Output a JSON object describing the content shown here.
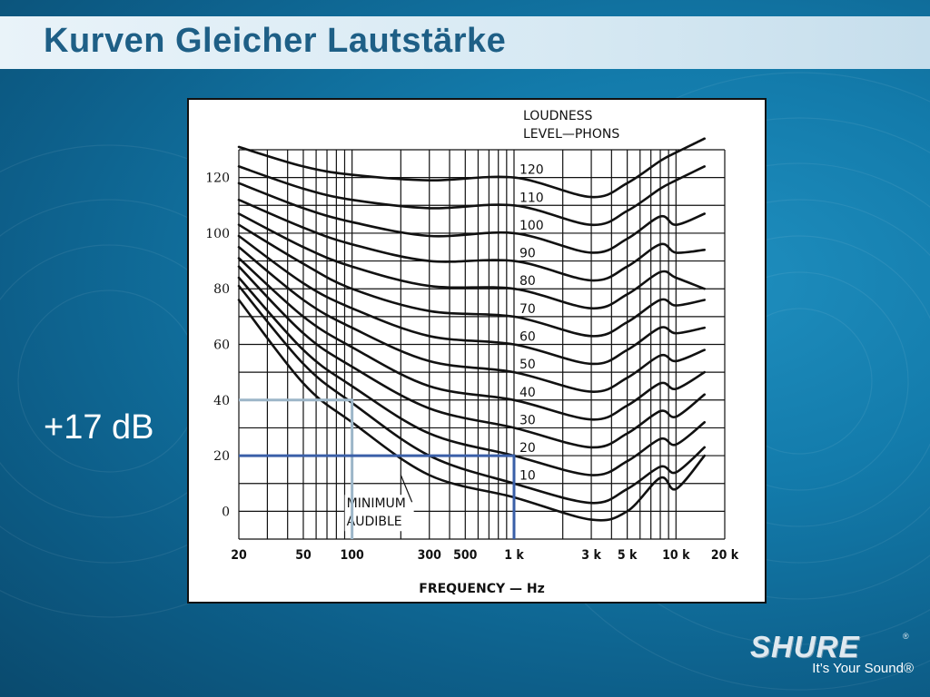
{
  "slide": {
    "title": "Kurven Gleicher Lautstärke",
    "annotation": "+17 dB",
    "logo_text": "SHURE",
    "logo_mark": "®",
    "tagline": "It’s Your Sound®"
  },
  "chart_data": {
    "type": "line",
    "title": "",
    "legend_title_line1": "LOUDNESS",
    "legend_title_line2": "LEVEL—PHONS",
    "xlabel": "FREQUENCY — Hz",
    "ylabel": "",
    "x_scale": "log",
    "xlim": [
      20,
      20000
    ],
    "ylim": [
      -10,
      130
    ],
    "grid": true,
    "x_ticks": [
      {
        "value": 20,
        "label": "20"
      },
      {
        "value": 50,
        "label": "50"
      },
      {
        "value": 100,
        "label": "100"
      },
      {
        "value": 300,
        "label": "300"
      },
      {
        "value": 500,
        "label": "500"
      },
      {
        "value": 1000,
        "label": "1 k"
      },
      {
        "value": 3000,
        "label": "3 k"
      },
      {
        "value": 5000,
        "label": "5 k"
      },
      {
        "value": 10000,
        "label": "10 k"
      },
      {
        "value": 20000,
        "label": "20 k"
      }
    ],
    "y_ticks": [
      0,
      20,
      40,
      60,
      80,
      100,
      120
    ],
    "x": [
      20,
      50,
      100,
      300,
      1000,
      3000,
      5000,
      8000,
      10000,
      15000
    ],
    "series": [
      {
        "name": "120",
        "values": [
          131,
          124,
          121,
          119,
          120,
          113,
          118,
          126,
          129,
          134
        ]
      },
      {
        "name": "110",
        "values": [
          124,
          116,
          112,
          109,
          110,
          103,
          108,
          116,
          119,
          124
        ]
      },
      {
        "name": "100",
        "values": [
          118,
          109,
          104,
          99,
          100,
          93,
          98,
          106,
          103,
          107
        ]
      },
      {
        "name": "90",
        "values": [
          112,
          102,
          96,
          90,
          90,
          83,
          88,
          96,
          93,
          94
        ]
      },
      {
        "name": "80",
        "values": [
          107,
          95,
          88,
          81,
          80,
          73,
          78,
          86,
          84,
          80
        ]
      },
      {
        "name": "70",
        "values": [
          103,
          89,
          80,
          72,
          70,
          63,
          68,
          76,
          74,
          76
        ]
      },
      {
        "name": "60",
        "values": [
          99,
          82,
          73,
          63,
          60,
          53,
          58,
          66,
          64,
          66
        ]
      },
      {
        "name": "50",
        "values": [
          95,
          76,
          66,
          54,
          50,
          43,
          48,
          56,
          54,
          58
        ]
      },
      {
        "name": "40",
        "values": [
          91,
          70,
          59,
          45,
          40,
          33,
          38,
          46,
          44,
          50
        ]
      },
      {
        "name": "30",
        "values": [
          88,
          64,
          52,
          37,
          30,
          23,
          28,
          36,
          34,
          42
        ]
      },
      {
        "name": "20",
        "values": [
          84,
          58,
          45,
          28,
          20,
          13,
          18,
          26,
          24,
          32
        ]
      },
      {
        "name": "10",
        "values": [
          81,
          53,
          39,
          20,
          10,
          3,
          8,
          16,
          14,
          23
        ]
      },
      {
        "name": "MINIMUM AUDIBLE",
        "values": [
          76,
          46,
          32,
          13,
          5,
          -3,
          0,
          12,
          8,
          20
        ]
      }
    ],
    "minimum_audible_label_line1": "MINIMUM",
    "minimum_audible_label_line2": "AUDIBLE",
    "y_axis_ticks_printed": [
      "120",
      "100",
      "80",
      "60",
      "40",
      "20",
      "0"
    ],
    "markers": [
      {
        "name": "100 Hz",
        "color": "#9cb6c8",
        "x": 100,
        "y": 40
      },
      {
        "name": "1 kHz",
        "color": "#3a5fa8",
        "x": 1000,
        "y": 20
      }
    ]
  }
}
